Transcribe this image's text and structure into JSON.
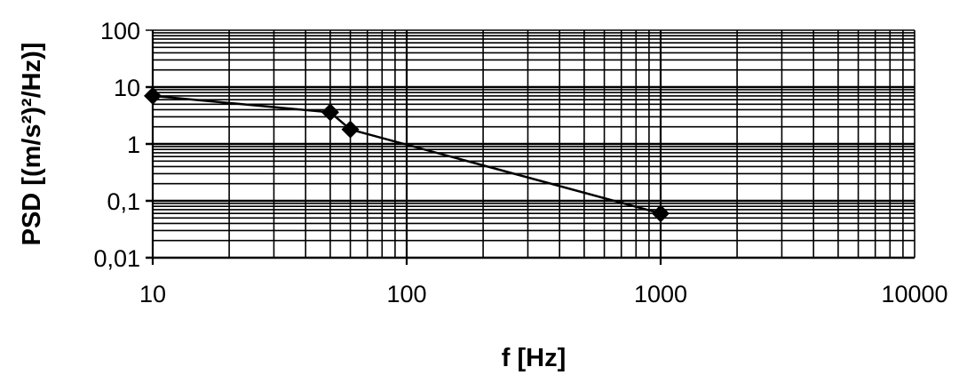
{
  "chart_data": {
    "type": "line",
    "title": "",
    "xlabel": "f [Hz]",
    "ylabel": "PSD [(m/s²)²/Hz)]",
    "xscale": "log",
    "yscale": "log",
    "xlim": [
      10,
      10000
    ],
    "ylim": [
      0.01,
      100
    ],
    "xticks": [
      10,
      100,
      1000,
      10000
    ],
    "xtick_labels": [
      "10",
      "100",
      "1000",
      "10000"
    ],
    "yticks": [
      100,
      10,
      1,
      0.1,
      0.01
    ],
    "ytick_labels": [
      "100",
      "10",
      "1",
      "0,1",
      "0,01"
    ],
    "grid": true,
    "series": [
      {
        "name": "PSD",
        "x": [
          10,
          50,
          60,
          1000
        ],
        "y": [
          7,
          3.6,
          1.8,
          0.06
        ],
        "marker": "diamond",
        "color": "#000000"
      }
    ]
  }
}
